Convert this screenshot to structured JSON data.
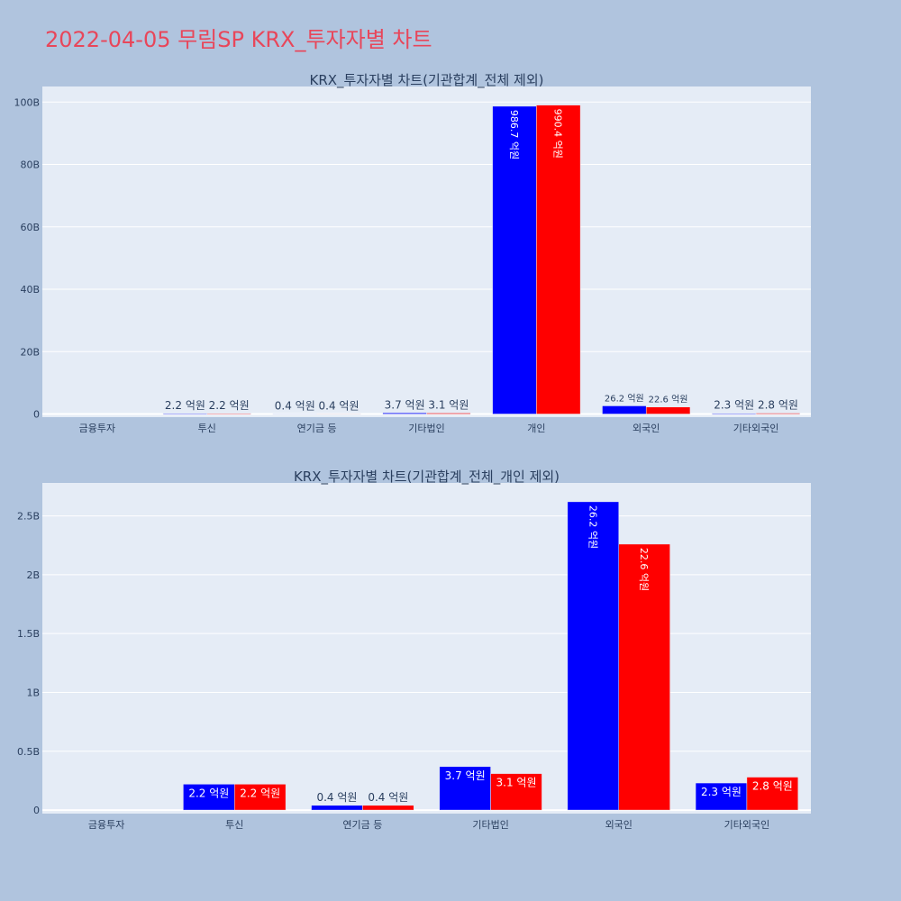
{
  "page": {
    "title": "2022-04-05 무림SP KRX_투자자별 차트"
  },
  "colors": {
    "buy": "#0000ff",
    "sell": "#ff0000",
    "plot_bg": "#e5ecf6",
    "paper_bg": "#b0c4de",
    "title": "#e8465a",
    "text": "#2a3f5f"
  },
  "chart_data": [
    {
      "type": "bar",
      "title": "KRX_투자자별 차트(기관합계_전체 제외)",
      "categories": [
        "금융투자",
        "투신",
        "연기금 등",
        "기타법인",
        "개인",
        "외국인",
        "기타외국인"
      ],
      "series": [
        {
          "values": [
            0,
            0.22,
            0.04,
            0.37,
            98.67,
            2.62,
            0.23
          ],
          "labels": [
            "",
            "2.2 억원",
            "0.4 억원",
            "3.7 억원",
            "986.7 억원",
            "26.2 억원",
            "2.3 억원"
          ]
        },
        {
          "values": [
            0,
            0.22,
            0.04,
            0.31,
            99.04,
            2.26,
            0.28
          ],
          "labels": [
            "",
            "2.2 억원",
            "0.4 억원",
            "3.1 억원",
            "990.4 억원",
            "22.6 억원",
            "2.8 억원"
          ]
        }
      ],
      "value_unit": "B",
      "ylim": [
        -1,
        105
      ],
      "yticks": [
        0,
        20,
        40,
        60,
        80,
        100
      ],
      "ytick_labels": [
        "0",
        "20B",
        "40B",
        "60B",
        "80B",
        "100B"
      ],
      "xlabel": "",
      "ylabel": "",
      "barmode": "group",
      "legend": "none"
    },
    {
      "type": "bar",
      "title": "KRX_투자자별 차트(기관합계_전체_개인 제외)",
      "categories": [
        "금융투자",
        "투신",
        "연기금 등",
        "기타법인",
        "외국인",
        "기타외국인"
      ],
      "series": [
        {
          "values": [
            0,
            0.22,
            0.04,
            0.37,
            2.62,
            0.23
          ],
          "labels": [
            "",
            "2.2 억원",
            "0.4 억원",
            "3.7 억원",
            "26.2 억원",
            "2.3 억원"
          ]
        },
        {
          "values": [
            0,
            0.22,
            0.04,
            0.31,
            2.26,
            0.28
          ],
          "labels": [
            "",
            "2.2 억원",
            "0.4 억원",
            "3.1 억원",
            "22.6 억원",
            "2.8 억원"
          ]
        }
      ],
      "value_unit": "B",
      "ylim": [
        -0.03,
        2.78
      ],
      "yticks": [
        0,
        0.5,
        1,
        1.5,
        2,
        2.5
      ],
      "ytick_labels": [
        "0",
        "0.5B",
        "1B",
        "1.5B",
        "2B",
        "2.5B"
      ],
      "xlabel": "",
      "ylabel": "",
      "barmode": "group",
      "legend": "none"
    }
  ]
}
